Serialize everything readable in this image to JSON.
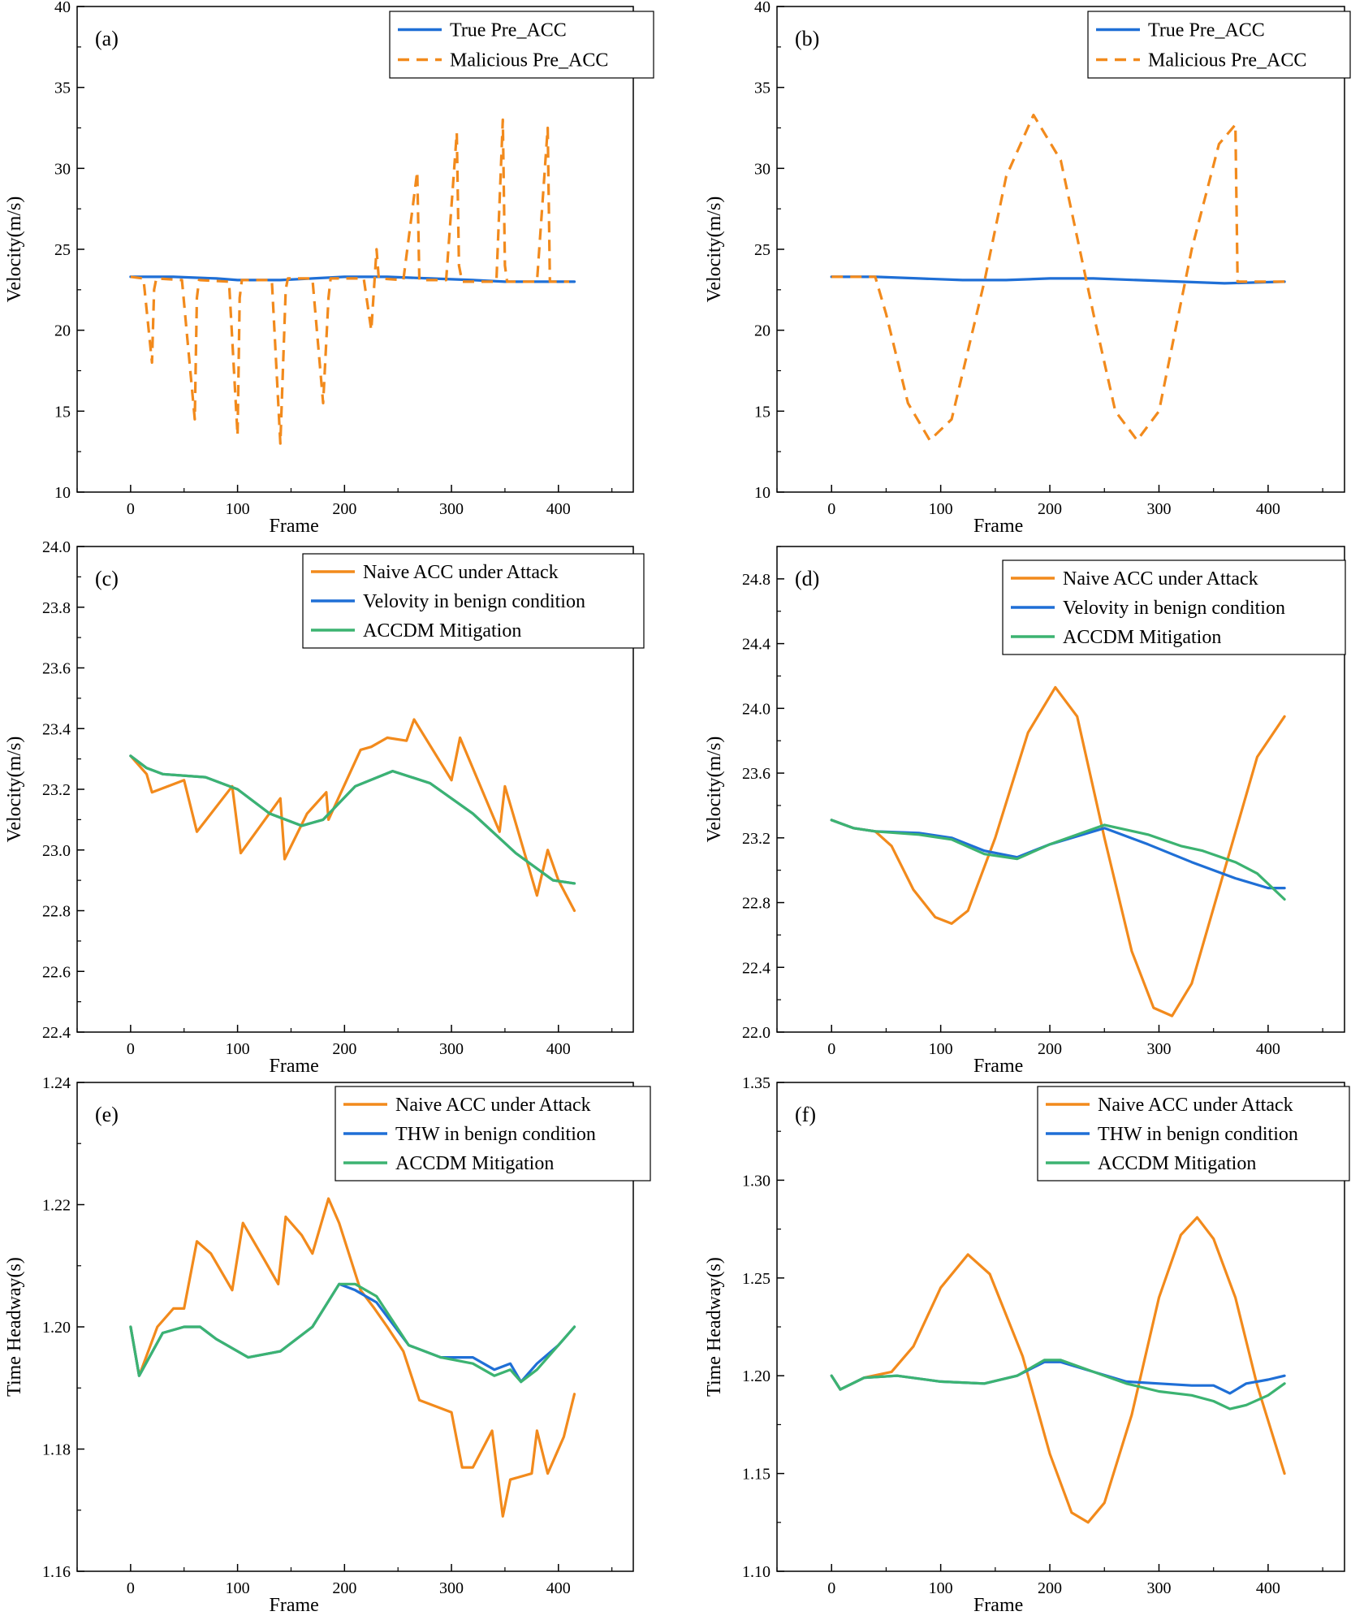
{
  "colors": {
    "true": "#1f6fd6",
    "benign": "#1f6fd6",
    "malicious": "#f28a1c",
    "naive": "#f28a1c",
    "mitigation": "#3cb371"
  },
  "chart_data": [
    {
      "id": "a",
      "panel_label": "(a)",
      "type": "line",
      "xlabel": "Frame",
      "ylabel": "Velocity(m/s)",
      "xlim": [
        -50,
        470
      ],
      "ylim": [
        10,
        40
      ],
      "xticks": [
        0,
        100,
        200,
        300,
        400
      ],
      "yticks": [
        10,
        15,
        20,
        25,
        30,
        35,
        40
      ],
      "legend": [
        "True Pre_ACC",
        "Malicious Pre_ACC"
      ],
      "series": [
        {
          "name": "True Pre_ACC",
          "color": "#1f6fd6",
          "dashed": false,
          "x": [
            0,
            40,
            80,
            100,
            140,
            170,
            200,
            240,
            280,
            320,
            350,
            380,
            415
          ],
          "y": [
            23.3,
            23.3,
            23.2,
            23.1,
            23.1,
            23.2,
            23.3,
            23.3,
            23.2,
            23.1,
            23.0,
            23.0,
            23.0
          ]
        },
        {
          "name": "Malicious Pre_ACC",
          "color": "#f28a1c",
          "dashed": true,
          "x": [
            0,
            12,
            20,
            22,
            24,
            48,
            60,
            62,
            64,
            92,
            100,
            102,
            104,
            132,
            140,
            145,
            147,
            170,
            180,
            185,
            187,
            218,
            225,
            230,
            232,
            255,
            268,
            270,
            295,
            305,
            307,
            310,
            342,
            348,
            350,
            352,
            380,
            390,
            392,
            410
          ],
          "y": [
            23.3,
            23.2,
            18.0,
            22.5,
            23.2,
            23.1,
            14.5,
            22.0,
            23.1,
            23.0,
            13.5,
            22.0,
            23.1,
            23.1,
            13.0,
            22.5,
            23.2,
            23.2,
            15.5,
            22.0,
            23.2,
            23.2,
            20.0,
            25.0,
            23.2,
            23.1,
            29.8,
            23.1,
            23.1,
            32.2,
            24.0,
            23.0,
            23.0,
            33.0,
            24.0,
            23.0,
            23.0,
            32.5,
            23.0,
            23.0
          ]
        }
      ]
    },
    {
      "id": "b",
      "panel_label": "(b)",
      "type": "line",
      "xlabel": "Frame",
      "ylabel": "Velocity(m/s)",
      "xlim": [
        -50,
        470
      ],
      "ylim": [
        10,
        40
      ],
      "xticks": [
        0,
        100,
        200,
        300,
        400
      ],
      "yticks": [
        10,
        15,
        20,
        25,
        30,
        35,
        40
      ],
      "legend": [
        "True Pre_ACC",
        "Malicious Pre_ACC"
      ],
      "series": [
        {
          "name": "True Pre_ACC",
          "color": "#1f6fd6",
          "dashed": false,
          "x": [
            0,
            40,
            80,
            120,
            160,
            200,
            240,
            280,
            320,
            360,
            415
          ],
          "y": [
            23.3,
            23.3,
            23.2,
            23.1,
            23.1,
            23.2,
            23.2,
            23.1,
            23.0,
            22.9,
            23.0
          ]
        },
        {
          "name": "Malicious Pre_ACC",
          "color": "#f28a1c",
          "dashed": true,
          "x": [
            0,
            40,
            50,
            70,
            90,
            110,
            140,
            160,
            185,
            210,
            240,
            260,
            280,
            300,
            330,
            355,
            370,
            372,
            374,
            415
          ],
          "y": [
            23.3,
            23.3,
            21.0,
            15.5,
            13.2,
            14.5,
            23.0,
            29.5,
            33.3,
            30.5,
            21.0,
            15.0,
            13.2,
            15.0,
            25.0,
            31.5,
            32.7,
            23.0,
            23.0,
            23.0
          ]
        }
      ]
    },
    {
      "id": "c",
      "panel_label": "(c)",
      "type": "line",
      "xlabel": "Frame",
      "ylabel": "Velocity(m/s)",
      "xlim": [
        -50,
        470
      ],
      "ylim": [
        22.4,
        24.0
      ],
      "xticks": [
        0,
        100,
        200,
        300,
        400
      ],
      "yticks": [
        22.4,
        22.6,
        22.8,
        23.0,
        23.2,
        23.4,
        23.6,
        23.8,
        24.0
      ],
      "legend": [
        "Naive ACC under Attack",
        "Velovity in benign condition",
        "ACCDM Mitigation"
      ],
      "series": [
        {
          "name": "Naive ACC under Attack",
          "color": "#f28a1c",
          "dashed": false,
          "x": [
            0,
            15,
            20,
            50,
            62,
            95,
            103,
            140,
            144,
            165,
            183,
            185,
            215,
            225,
            240,
            258,
            265,
            300,
            308,
            345,
            350,
            380,
            390,
            400,
            415
          ],
          "y": [
            23.31,
            23.25,
            23.19,
            23.23,
            23.06,
            23.21,
            22.99,
            23.17,
            22.97,
            23.12,
            23.19,
            23.1,
            23.33,
            23.34,
            23.37,
            23.36,
            23.43,
            23.23,
            23.37,
            23.06,
            23.21,
            22.85,
            23.0,
            22.9,
            22.8
          ]
        },
        {
          "name": "Velovity in benign condition",
          "color": "#1f6fd6",
          "dashed": false,
          "x": [
            0,
            15,
            30,
            70,
            100,
            130,
            160,
            180,
            210,
            245,
            280,
            320,
            360,
            395,
            415
          ],
          "y": [
            23.31,
            23.27,
            23.25,
            23.24,
            23.2,
            23.12,
            23.08,
            23.1,
            23.21,
            23.26,
            23.22,
            23.12,
            22.99,
            22.9,
            22.89
          ]
        },
        {
          "name": "ACCDM Mitigation",
          "color": "#3cb371",
          "dashed": false,
          "x": [
            0,
            15,
            30,
            70,
            100,
            130,
            160,
            180,
            210,
            245,
            280,
            320,
            360,
            395,
            415
          ],
          "y": [
            23.31,
            23.27,
            23.25,
            23.24,
            23.2,
            23.12,
            23.08,
            23.1,
            23.21,
            23.26,
            23.22,
            23.12,
            22.99,
            22.9,
            22.89
          ]
        }
      ]
    },
    {
      "id": "d",
      "panel_label": "(d)",
      "type": "line",
      "xlabel": "Frame",
      "ylabel": "Velocity(m/s)",
      "xlim": [
        -50,
        470
      ],
      "ylim": [
        22.0,
        25.0
      ],
      "xticks": [
        0,
        100,
        200,
        300,
        400
      ],
      "yticks": [
        22.0,
        22.4,
        22.8,
        23.2,
        23.6,
        24.0,
        24.4,
        24.8
      ],
      "legend": [
        "Naive ACC under Attack",
        "Velovity in benign condition",
        "ACCDM Mitigation"
      ],
      "series": [
        {
          "name": "Naive ACC under Attack",
          "color": "#f28a1c",
          "dashed": false,
          "x": [
            0,
            20,
            40,
            55,
            75,
            95,
            110,
            125,
            150,
            180,
            205,
            225,
            250,
            275,
            295,
            312,
            330,
            360,
            390,
            415
          ],
          "y": [
            23.31,
            23.26,
            23.24,
            23.15,
            22.88,
            22.71,
            22.67,
            22.75,
            23.2,
            23.85,
            24.13,
            23.95,
            23.2,
            22.5,
            22.15,
            22.1,
            22.3,
            23.0,
            23.7,
            23.95
          ]
        },
        {
          "name": "Velovity in benign condition",
          "color": "#1f6fd6",
          "dashed": false,
          "x": [
            0,
            20,
            40,
            80,
            110,
            140,
            170,
            200,
            250,
            290,
            330,
            370,
            400,
            415
          ],
          "y": [
            23.31,
            23.26,
            23.24,
            23.23,
            23.2,
            23.12,
            23.08,
            23.16,
            23.26,
            23.16,
            23.05,
            22.95,
            22.89,
            22.89
          ]
        },
        {
          "name": "ACCDM Mitigation",
          "color": "#3cb371",
          "dashed": false,
          "x": [
            0,
            20,
            40,
            80,
            110,
            140,
            170,
            200,
            250,
            290,
            320,
            340,
            370,
            390,
            415
          ],
          "y": [
            23.31,
            23.26,
            23.24,
            23.22,
            23.19,
            23.1,
            23.07,
            23.16,
            23.28,
            23.22,
            23.15,
            23.12,
            23.05,
            22.98,
            22.82
          ]
        }
      ]
    },
    {
      "id": "e",
      "panel_label": "(e)",
      "type": "line",
      "xlabel": "Frame",
      "ylabel": "Time Headway(s)",
      "xlim": [
        -50,
        470
      ],
      "ylim": [
        1.16,
        1.24
      ],
      "xticks": [
        0,
        100,
        200,
        300,
        400
      ],
      "yticks": [
        1.16,
        1.18,
        1.2,
        1.22,
        1.24
      ],
      "legend": [
        "Naive ACC under Attack",
        "THW in benign condition",
        "ACCDM Mitigation"
      ],
      "series": [
        {
          "name": "Naive ACC under Attack",
          "color": "#f28a1c",
          "dashed": false,
          "x": [
            0,
            8,
            25,
            40,
            50,
            62,
            75,
            95,
            105,
            125,
            138,
            145,
            160,
            170,
            185,
            195,
            215,
            228,
            240,
            255,
            270,
            285,
            300,
            310,
            320,
            338,
            348,
            355,
            375,
            380,
            390,
            405,
            415
          ],
          "y": [
            1.2,
            1.192,
            1.2,
            1.203,
            1.203,
            1.214,
            1.212,
            1.206,
            1.217,
            1.211,
            1.207,
            1.218,
            1.215,
            1.212,
            1.221,
            1.217,
            1.206,
            1.203,
            1.2,
            1.196,
            1.188,
            1.187,
            1.186,
            1.177,
            1.177,
            1.183,
            1.169,
            1.175,
            1.176,
            1.183,
            1.176,
            1.182,
            1.189
          ]
        },
        {
          "name": "THW in benign condition",
          "color": "#1f6fd6",
          "dashed": false,
          "x": [
            0,
            8,
            30,
            50,
            65,
            80,
            110,
            140,
            170,
            195,
            210,
            230,
            260,
            290,
            320,
            340,
            355,
            365,
            380,
            400,
            415
          ],
          "y": [
            1.2,
            1.192,
            1.199,
            1.2,
            1.2,
            1.198,
            1.195,
            1.196,
            1.2,
            1.207,
            1.206,
            1.204,
            1.197,
            1.195,
            1.195,
            1.193,
            1.194,
            1.191,
            1.194,
            1.197,
            1.2
          ]
        },
        {
          "name": "ACCDM Mitigation",
          "color": "#3cb371",
          "dashed": false,
          "x": [
            0,
            8,
            30,
            50,
            65,
            80,
            110,
            140,
            170,
            195,
            210,
            230,
            260,
            290,
            320,
            340,
            355,
            365,
            380,
            400,
            415
          ],
          "y": [
            1.2,
            1.192,
            1.199,
            1.2,
            1.2,
            1.198,
            1.195,
            1.196,
            1.2,
            1.207,
            1.207,
            1.205,
            1.197,
            1.195,
            1.194,
            1.192,
            1.193,
            1.191,
            1.193,
            1.197,
            1.2
          ]
        }
      ]
    },
    {
      "id": "f",
      "panel_label": "(f)",
      "type": "line",
      "xlabel": "Frame",
      "ylabel": "Time Headway(s)",
      "xlim": [
        -50,
        470
      ],
      "ylim": [
        1.1,
        1.35
      ],
      "xticks": [
        0,
        100,
        200,
        300,
        400
      ],
      "yticks": [
        1.1,
        1.15,
        1.2,
        1.25,
        1.3,
        1.35
      ],
      "legend": [
        "Naive ACC under Attack",
        "THW in benign condition",
        "ACCDM Mitigation"
      ],
      "series": [
        {
          "name": "Naive ACC under Attack",
          "color": "#f28a1c",
          "dashed": false,
          "x": [
            0,
            8,
            30,
            55,
            75,
            100,
            125,
            145,
            175,
            200,
            220,
            235,
            250,
            275,
            300,
            320,
            335,
            350,
            370,
            390,
            415
          ],
          "y": [
            1.2,
            1.193,
            1.199,
            1.202,
            1.215,
            1.245,
            1.262,
            1.252,
            1.21,
            1.16,
            1.13,
            1.125,
            1.135,
            1.18,
            1.24,
            1.272,
            1.281,
            1.27,
            1.24,
            1.195,
            1.15
          ]
        },
        {
          "name": "THW in benign condition",
          "color": "#1f6fd6",
          "dashed": false,
          "x": [
            0,
            8,
            30,
            60,
            100,
            140,
            170,
            195,
            210,
            240,
            270,
            300,
            330,
            350,
            365,
            380,
            400,
            415
          ],
          "y": [
            1.2,
            1.193,
            1.199,
            1.2,
            1.197,
            1.196,
            1.2,
            1.207,
            1.207,
            1.202,
            1.197,
            1.196,
            1.195,
            1.195,
            1.191,
            1.196,
            1.198,
            1.2
          ]
        },
        {
          "name": "ACCDM Mitigation",
          "color": "#3cb371",
          "dashed": false,
          "x": [
            0,
            8,
            30,
            60,
            100,
            140,
            170,
            195,
            210,
            240,
            270,
            300,
            330,
            350,
            365,
            380,
            400,
            415
          ],
          "y": [
            1.2,
            1.193,
            1.199,
            1.2,
            1.197,
            1.196,
            1.2,
            1.208,
            1.208,
            1.202,
            1.196,
            1.192,
            1.19,
            1.187,
            1.183,
            1.185,
            1.19,
            1.196
          ]
        }
      ]
    }
  ]
}
